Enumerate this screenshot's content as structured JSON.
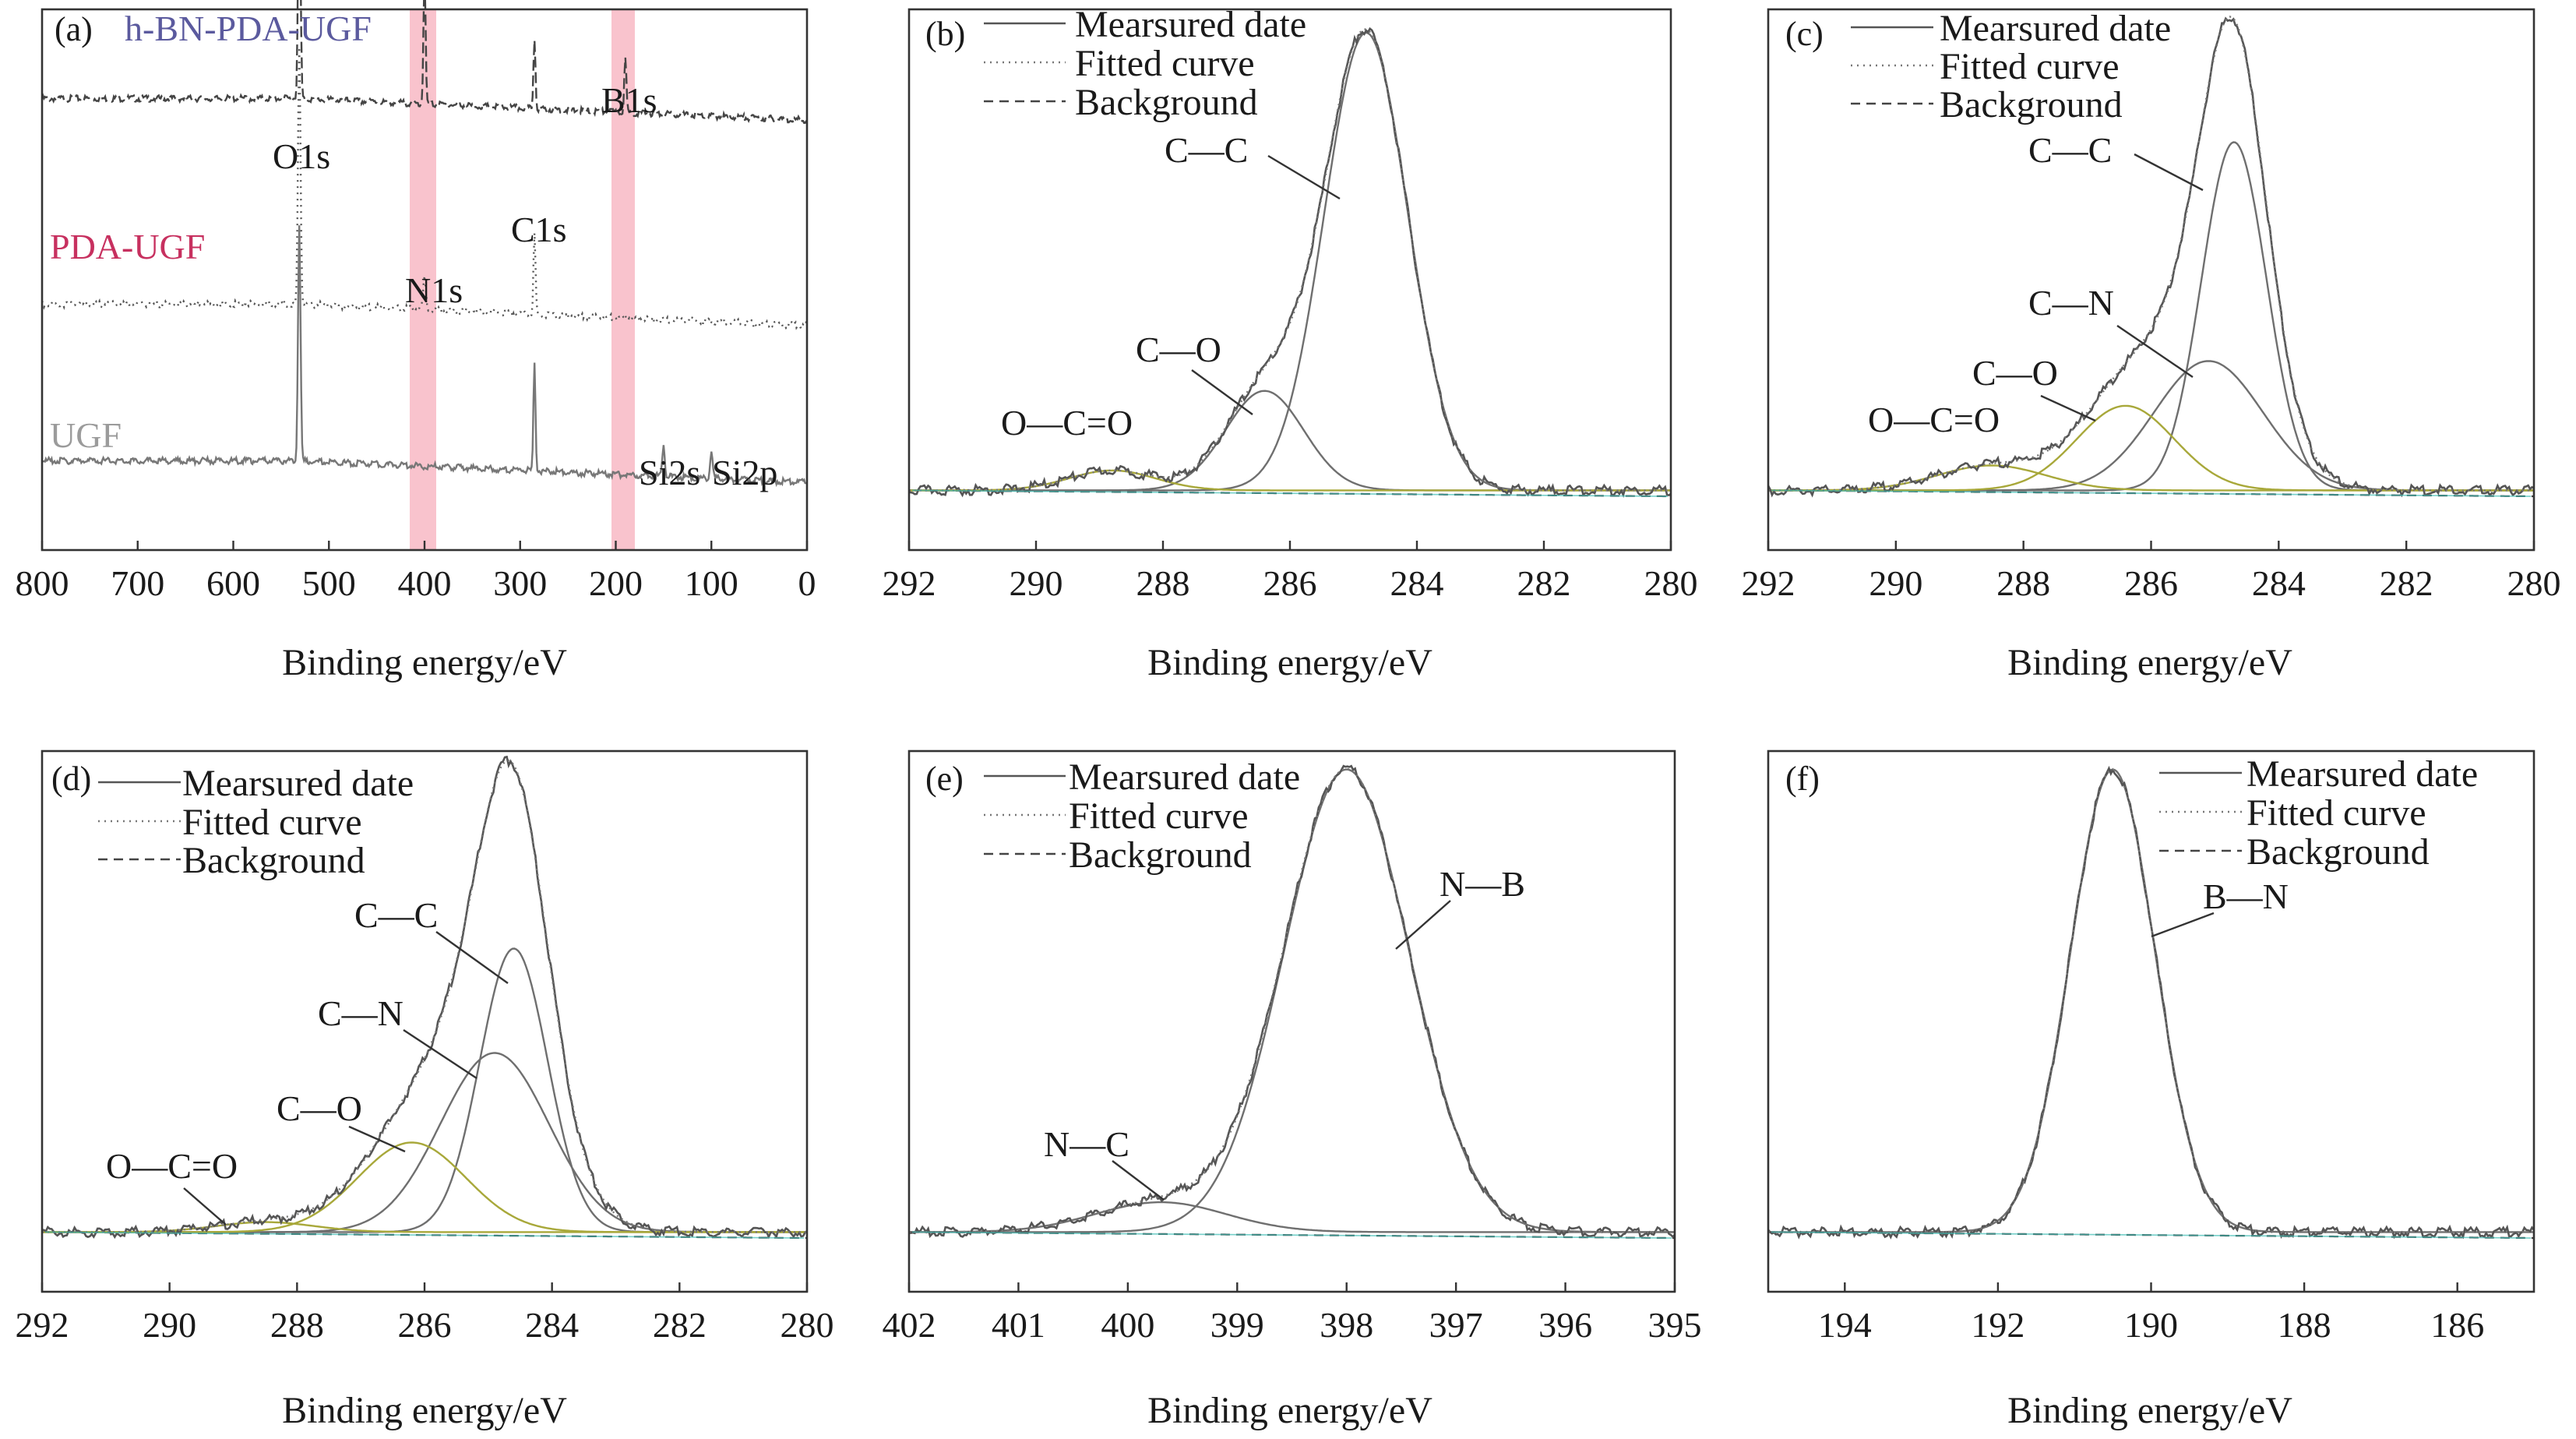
{
  "chart_data": [
    {
      "panel": "(a)",
      "type": "line",
      "xlabel": "Binding energy/eV",
      "xlim": [
        800,
        0
      ],
      "xticks": [
        "800",
        "700",
        "600",
        "500",
        "400",
        "300",
        "200",
        "100",
        "0"
      ],
      "highlight_bands": [
        [
          415,
          390
        ],
        [
          200,
          182
        ]
      ],
      "band_color": "#f9c3cd",
      "series": [
        {
          "name": "h-BN-PDA-UGF",
          "color": "#5b5a9e",
          "offset": 0.8,
          "peaks": [
            [
              531,
              0.42,
              3
            ],
            [
              400,
              0.25,
              2.5
            ],
            [
              285,
              0.13,
              2.5
            ],
            [
              190,
              0.1,
              2.5
            ]
          ]
        },
        {
          "name": "PDA-UGF",
          "color": "#c7305f",
          "offset": 0.42,
          "peaks": [
            [
              531,
              0.48,
              3
            ],
            [
              400,
              0.06,
              3
            ],
            [
              285,
              0.15,
              2.5
            ]
          ]
        },
        {
          "name": "UGF",
          "color": "#9b9b9b",
          "offset": 0.13,
          "peaks": [
            [
              531,
              0.44,
              3
            ],
            [
              285,
              0.2,
              2.5
            ],
            [
              150,
              0.06,
              3
            ],
            [
              100,
              0.05,
              3
            ]
          ]
        }
      ],
      "peak_labels": [
        "O1s",
        "N1s",
        "C1s",
        "B1s",
        "Si2s",
        "Si2p"
      ]
    },
    {
      "panel": "(b)",
      "type": "line",
      "xlabel": "Binding energy/eV",
      "xlim": [
        292,
        280
      ],
      "xticks": [
        "292",
        "290",
        "288",
        "286",
        "284",
        "282",
        "280"
      ],
      "legend": [
        "Mearsured date",
        "Fitted curve",
        "Background"
      ],
      "components": [
        {
          "name": "C—C",
          "center": 284.8,
          "fwhm": 1.55,
          "height": 0.92
        },
        {
          "name": "C—O",
          "center": 286.4,
          "fwhm": 1.45,
          "height": 0.2
        },
        {
          "name": "O—C=O",
          "center": 288.8,
          "fwhm": 1.6,
          "height": 0.04
        }
      ]
    },
    {
      "panel": "(c)",
      "type": "line",
      "xlabel": "Binding energy/eV",
      "xlim": [
        292,
        280
      ],
      "xticks": [
        "292",
        "290",
        "288",
        "286",
        "284",
        "282",
        "280"
      ],
      "legend": [
        "Mearsured date",
        "Fitted curve",
        "Background"
      ],
      "components": [
        {
          "name": "C—C",
          "center": 284.7,
          "fwhm": 1.2,
          "height": 0.7
        },
        {
          "name": "C—N",
          "center": 285.1,
          "fwhm": 2.0,
          "height": 0.26
        },
        {
          "name": "C—O",
          "center": 286.4,
          "fwhm": 1.8,
          "height": 0.17
        },
        {
          "name": "O—C=O",
          "center": 288.5,
          "fwhm": 2.0,
          "height": 0.05
        }
      ]
    },
    {
      "panel": "(d)",
      "type": "line",
      "xlabel": "Binding energy/eV",
      "xlim": [
        292,
        280
      ],
      "xticks": [
        "292",
        "290",
        "288",
        "286",
        "284",
        "282",
        "280"
      ],
      "legend": [
        "Mearsured date",
        "Fitted curve",
        "Background"
      ],
      "components": [
        {
          "name": "C—C",
          "center": 284.6,
          "fwhm": 1.25,
          "height": 0.57
        },
        {
          "name": "C—N",
          "center": 284.9,
          "fwhm": 2.0,
          "height": 0.36
        },
        {
          "name": "C—O",
          "center": 286.2,
          "fwhm": 2.0,
          "height": 0.18
        },
        {
          "name": "O—C=O",
          "center": 288.5,
          "fwhm": 1.8,
          "height": 0.02
        }
      ]
    },
    {
      "panel": "(e)",
      "type": "line",
      "xlabel": "Binding energy/eV",
      "xlim": [
        402,
        395
      ],
      "xticks": [
        "402",
        "401",
        "400",
        "399",
        "398",
        "397",
        "396",
        "395"
      ],
      "legend": [
        "Mearsured date",
        "Fitted curve",
        "Background"
      ],
      "components": [
        {
          "name": "N—B",
          "center": 398.0,
          "fwhm": 1.35,
          "height": 0.93
        },
        {
          "name": "N—C",
          "center": 399.7,
          "fwhm": 1.4,
          "height": 0.06
        }
      ]
    },
    {
      "panel": "(f)",
      "type": "line",
      "xlabel": "Binding energy/eV",
      "xlim": [
        195,
        185
      ],
      "xticks": [
        "194",
        "192",
        "190",
        "188",
        "186"
      ],
      "legend": [
        "Mearsured date",
        "Fitted curve",
        "Background"
      ],
      "components": [
        {
          "name": "B—N",
          "center": 190.5,
          "fwhm": 1.3,
          "height": 0.93
        }
      ]
    }
  ],
  "colors": {
    "measured": "#555555",
    "fitted": "#777777",
    "background": "#444444",
    "component_teal": "#3cbcb4",
    "component_olive": "#a8a83a",
    "component_gray": "#6f6f6f",
    "baseline_red": "#d0605c"
  }
}
